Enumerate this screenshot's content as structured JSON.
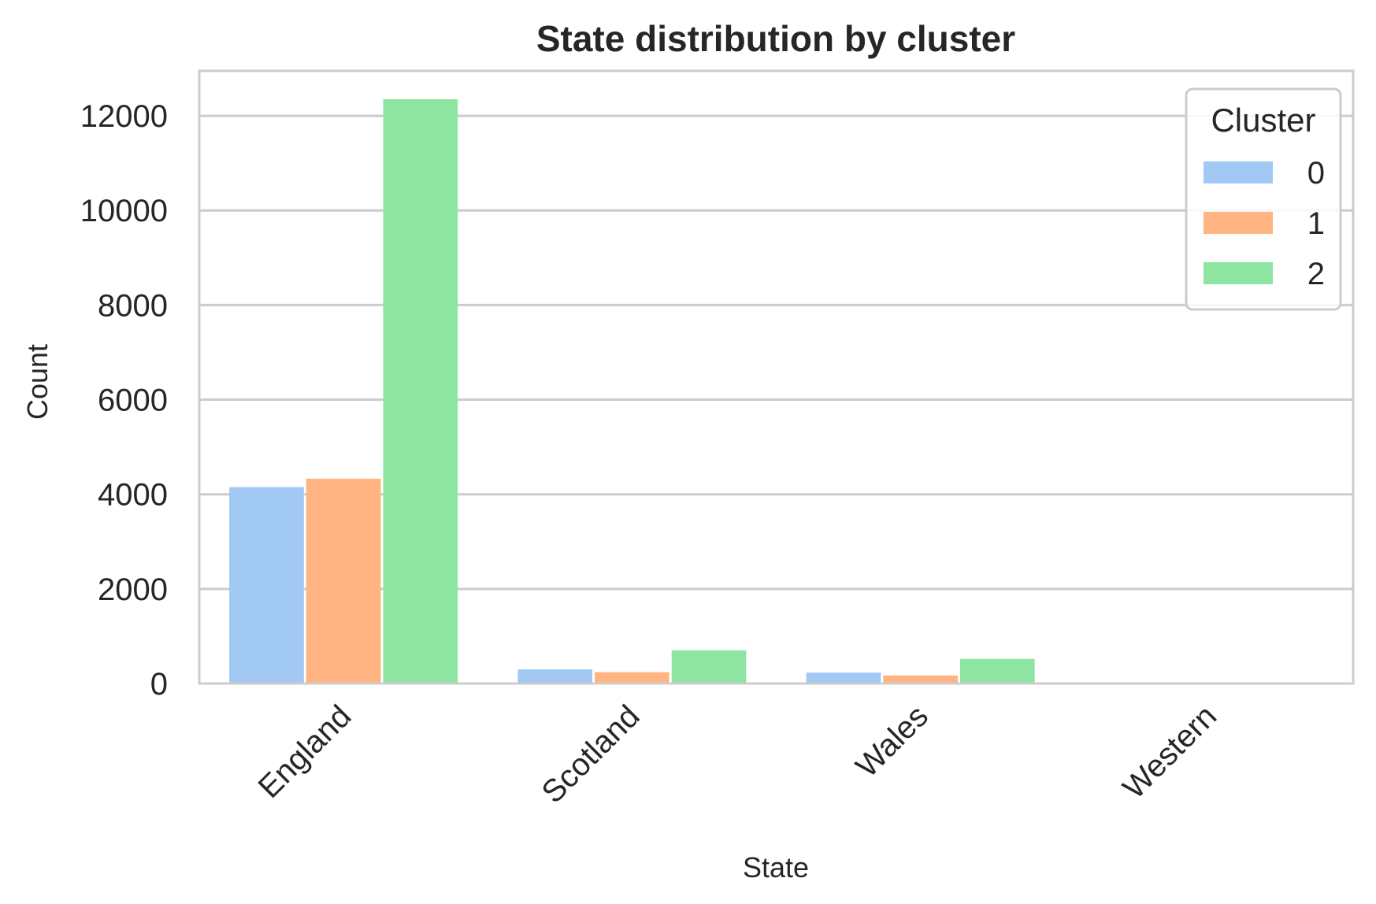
{
  "chart_data": {
    "type": "bar",
    "title": "State distribution by cluster",
    "xlabel": "State",
    "ylabel": "Count",
    "categories": [
      "England",
      "Scotland",
      "Wales",
      "Western"
    ],
    "series": [
      {
        "name": "0",
        "values": [
          4150,
          300,
          230,
          0
        ],
        "color": "#a1c9f4"
      },
      {
        "name": "1",
        "values": [
          4330,
          240,
          170,
          0
        ],
        "color": "#ffb482"
      },
      {
        "name": "2",
        "values": [
          12350,
          700,
          520,
          4
        ],
        "color": "#8de5a1"
      }
    ],
    "ylim": [
      0,
      12950
    ],
    "yticks": [
      0,
      2000,
      4000,
      6000,
      8000,
      10000,
      12000
    ],
    "grid": true,
    "legend": {
      "title": "Cluster",
      "placement": "top-right"
    },
    "colors": {
      "grid": "#cccccc",
      "frame": "#cccccc",
      "text": "#262626"
    }
  }
}
